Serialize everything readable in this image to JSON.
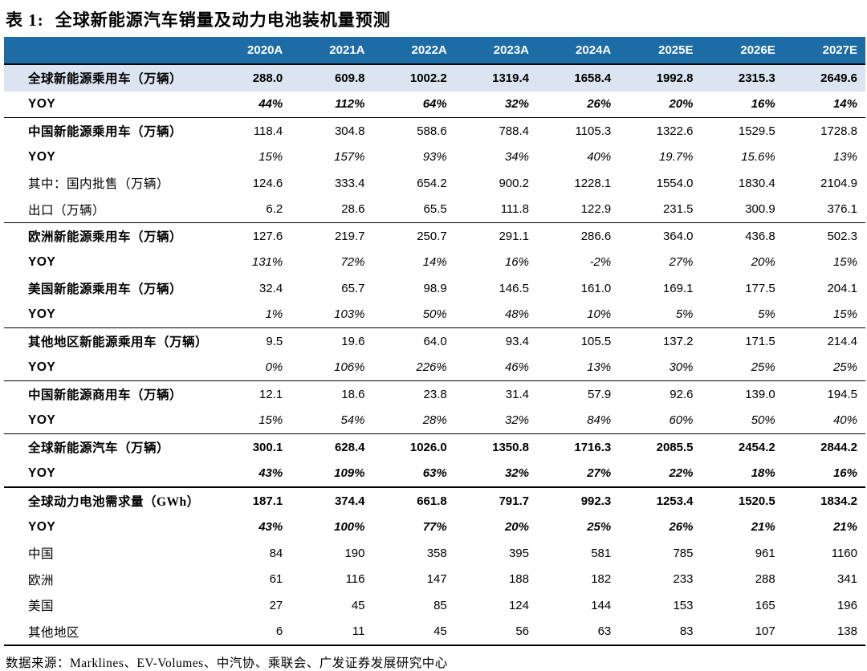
{
  "title": {
    "prefix": "表 1:",
    "text": "全球新能源汽车销量及动力电池装机量预测"
  },
  "columns": [
    "2020A",
    "2021A",
    "2022A",
    "2023A",
    "2024A",
    "2025E",
    "2026E",
    "2027E"
  ],
  "rows": [
    {
      "label": "全球新能源乘用车（万辆）",
      "label_style": "section",
      "value_style": "bold",
      "shaded": true,
      "divider": "none",
      "values": [
        "288.0",
        "609.8",
        "1002.2",
        "1319.4",
        "1658.4",
        "1992.8",
        "2315.3",
        "2649.6"
      ]
    },
    {
      "label": "YOY",
      "label_style": "yoy",
      "value_style": "bold-italic",
      "shaded": false,
      "divider": "thin",
      "values": [
        "44%",
        "112%",
        "64%",
        "32%",
        "26%",
        "20%",
        "16%",
        "14%"
      ]
    },
    {
      "label": "中国新能源乘用车（万辆）",
      "label_style": "section",
      "value_style": "regular",
      "shaded": false,
      "divider": "none",
      "values": [
        "118.4",
        "304.8",
        "588.6",
        "788.4",
        "1105.3",
        "1322.6",
        "1529.5",
        "1728.8"
      ]
    },
    {
      "label": "YOY",
      "label_style": "yoy",
      "value_style": "italic",
      "shaded": false,
      "divider": "none",
      "values": [
        "15%",
        "157%",
        "93%",
        "34%",
        "40%",
        "19.7%",
        "15.6%",
        "13%"
      ]
    },
    {
      "label": "其中：国内批售（万辆）",
      "label_style": "sub",
      "value_style": "regular",
      "shaded": false,
      "divider": "none",
      "values": [
        "124.6",
        "333.4",
        "654.2",
        "900.2",
        "1228.1",
        "1554.0",
        "1830.4",
        "2104.9"
      ]
    },
    {
      "label": "出口（万辆）",
      "label_style": "sub",
      "value_style": "regular",
      "shaded": false,
      "divider": "thin",
      "values": [
        "6.2",
        "28.6",
        "65.5",
        "111.8",
        "122.9",
        "231.5",
        "300.9",
        "376.1"
      ]
    },
    {
      "label": "欧洲新能源乘用车（万辆）",
      "label_style": "section",
      "value_style": "regular",
      "shaded": false,
      "divider": "none",
      "values": [
        "127.6",
        "219.7",
        "250.7",
        "291.1",
        "286.6",
        "364.0",
        "436.8",
        "502.3"
      ]
    },
    {
      "label": "YOY",
      "label_style": "yoy",
      "value_style": "italic",
      "shaded": false,
      "divider": "none",
      "values": [
        "131%",
        "72%",
        "14%",
        "16%",
        "-2%",
        "27%",
        "20%",
        "15%"
      ]
    },
    {
      "label": "美国新能源乘用车（万辆）",
      "label_style": "section",
      "value_style": "regular",
      "shaded": false,
      "divider": "none",
      "values": [
        "32.4",
        "65.7",
        "98.9",
        "146.5",
        "161.0",
        "169.1",
        "177.5",
        "204.1"
      ]
    },
    {
      "label": "YOY",
      "label_style": "yoy",
      "value_style": "italic",
      "shaded": false,
      "divider": "thin",
      "values": [
        "1%",
        "103%",
        "50%",
        "48%",
        "10%",
        "5%",
        "5%",
        "15%"
      ]
    },
    {
      "label": "其他地区新能源乘用车（万辆）",
      "label_style": "section",
      "value_style": "regular",
      "shaded": false,
      "divider": "none",
      "values": [
        "9.5",
        "19.6",
        "64.0",
        "93.4",
        "105.5",
        "137.2",
        "171.5",
        "214.4"
      ]
    },
    {
      "label": "YOY",
      "label_style": "yoy",
      "value_style": "italic",
      "shaded": false,
      "divider": "thin",
      "values": [
        "0%",
        "106%",
        "226%",
        "46%",
        "13%",
        "30%",
        "25%",
        "25%"
      ]
    },
    {
      "label": "中国新能源商用车（万辆）",
      "label_style": "section",
      "value_style": "regular",
      "shaded": false,
      "divider": "none",
      "values": [
        "12.1",
        "18.6",
        "23.8",
        "31.4",
        "57.9",
        "92.6",
        "139.0",
        "194.5"
      ]
    },
    {
      "label": "YOY",
      "label_style": "yoy",
      "value_style": "italic",
      "shaded": false,
      "divider": "thin",
      "values": [
        "15%",
        "54%",
        "28%",
        "32%",
        "84%",
        "60%",
        "50%",
        "40%"
      ]
    },
    {
      "label": "全球新能源汽车（万辆）",
      "label_style": "section",
      "value_style": "bold",
      "shaded": false,
      "divider": "none",
      "values": [
        "300.1",
        "628.4",
        "1026.0",
        "1350.8",
        "1716.3",
        "2085.5",
        "2454.2",
        "2844.2"
      ]
    },
    {
      "label": "YOY",
      "label_style": "yoy",
      "value_style": "bold-italic",
      "shaded": false,
      "divider": "thick",
      "values": [
        "43%",
        "109%",
        "63%",
        "32%",
        "27%",
        "22%",
        "18%",
        "16%"
      ]
    },
    {
      "label": "全球动力电池需求量（GWh）",
      "label_style": "section",
      "value_style": "bold",
      "shaded": false,
      "divider": "none",
      "values": [
        "187.1",
        "374.4",
        "661.8",
        "791.7",
        "992.3",
        "1253.4",
        "1520.5",
        "1834.2"
      ]
    },
    {
      "label": "YOY",
      "label_style": "yoy",
      "value_style": "bold-italic",
      "shaded": false,
      "divider": "none",
      "values": [
        "43%",
        "100%",
        "77%",
        "20%",
        "25%",
        "26%",
        "21%",
        "21%"
      ]
    },
    {
      "label": "中国",
      "label_style": "sub",
      "value_style": "regular",
      "shaded": false,
      "divider": "none",
      "values": [
        "84",
        "190",
        "358",
        "395",
        "581",
        "785",
        "961",
        "1160"
      ]
    },
    {
      "label": "欧洲",
      "label_style": "sub",
      "value_style": "regular",
      "shaded": false,
      "divider": "none",
      "values": [
        "61",
        "116",
        "147",
        "188",
        "182",
        "233",
        "288",
        "341"
      ]
    },
    {
      "label": "美国",
      "label_style": "sub",
      "value_style": "regular",
      "shaded": false,
      "divider": "none",
      "values": [
        "27",
        "45",
        "85",
        "124",
        "144",
        "153",
        "165",
        "196"
      ]
    },
    {
      "label": "其他地区",
      "label_style": "sub",
      "value_style": "regular",
      "shaded": false,
      "divider": "thick",
      "values": [
        "6",
        "11",
        "45",
        "56",
        "63",
        "83",
        "107",
        "138"
      ]
    }
  ],
  "source_note": "数据来源：Marklines、EV-Volumes、中汽协、乘联会、广发证券发展研究中心",
  "colors": {
    "header_bg": "#1E6CA6",
    "header_text": "#FFFFFF",
    "shaded_row_bg": "#DBE4F0",
    "divider": "#000000"
  }
}
